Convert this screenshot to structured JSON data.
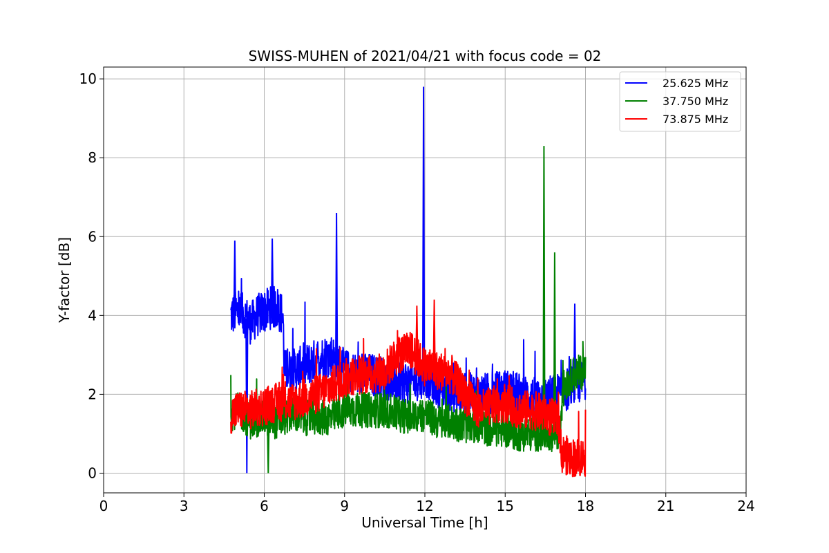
{
  "chart_data": {
    "type": "line",
    "title": "SWISS-MUHEN of 2021/04/21 with focus code = 02",
    "xlabel": "Universal Time [h]",
    "ylabel": "Y-factor [dB]",
    "xlim": [
      0,
      24
    ],
    "ylim": [
      -0.5,
      10.3
    ],
    "xticks": [
      0,
      3,
      6,
      9,
      12,
      15,
      18,
      21,
      24
    ],
    "yticks": [
      0,
      2,
      4,
      6,
      8,
      10
    ],
    "grid": true,
    "legend_position": "top-right",
    "series": [
      {
        "name": "25.625 MHz",
        "color": "#0000ff",
        "x": [
          4.75,
          5.0,
          5.25,
          5.5,
          5.75,
          6.0,
          6.25,
          6.5,
          6.7,
          6.75,
          7.0,
          7.5,
          8.0,
          8.5,
          9.0,
          9.5,
          10.0,
          10.5,
          11.0,
          11.5,
          12.0,
          12.5,
          13.0,
          13.5,
          14.0,
          14.5,
          15.0,
          15.5,
          16.0,
          16.5,
          17.0,
          17.5,
          18.0
        ],
        "y": [
          4.0,
          4.1,
          4.0,
          3.8,
          4.0,
          4.1,
          4.2,
          4.2,
          4.0,
          2.6,
          2.6,
          2.7,
          2.9,
          3.0,
          2.6,
          2.5,
          2.5,
          2.4,
          2.3,
          2.3,
          2.5,
          2.2,
          2.1,
          2.0,
          2.0,
          2.0,
          2.1,
          2.0,
          1.9,
          1.9,
          2.0,
          2.2,
          2.4
        ],
        "peaks": [
          {
            "x": 4.9,
            "y": 5.9
          },
          {
            "x": 5.35,
            "y": 0.0
          },
          {
            "x": 6.3,
            "y": 5.95
          },
          {
            "x": 8.7,
            "y": 6.6
          },
          {
            "x": 11.95,
            "y": 9.8
          },
          {
            "x": 17.6,
            "y": 4.3
          }
        ]
      },
      {
        "name": "37.750 MHz",
        "color": "#008000",
        "x": [
          4.75,
          5.0,
          5.5,
          6.0,
          6.5,
          7.0,
          7.5,
          8.0,
          8.5,
          9.0,
          9.5,
          10.0,
          10.5,
          11.0,
          11.5,
          12.0,
          12.5,
          13.0,
          13.5,
          14.0,
          14.5,
          15.0,
          15.5,
          16.0,
          16.5,
          17.0,
          17.2,
          17.5,
          18.0
        ],
        "y": [
          1.5,
          1.6,
          1.3,
          1.4,
          1.3,
          1.5,
          1.4,
          1.4,
          1.4,
          1.6,
          1.6,
          1.6,
          1.6,
          1.5,
          1.4,
          1.5,
          1.3,
          1.3,
          1.2,
          1.2,
          1.1,
          1.1,
          1.0,
          1.0,
          1.0,
          1.0,
          2.2,
          2.5,
          2.6
        ],
        "peaks": [
          {
            "x": 6.15,
            "y": 0.0
          },
          {
            "x": 16.45,
            "y": 8.3
          },
          {
            "x": 16.85,
            "y": 5.6
          }
        ]
      },
      {
        "name": "73.875 MHz",
        "color": "#ff0000",
        "x": [
          4.75,
          5.0,
          5.5,
          6.0,
          6.5,
          7.0,
          7.5,
          8.0,
          8.5,
          9.0,
          9.5,
          10.0,
          10.5,
          11.0,
          11.5,
          12.0,
          12.5,
          13.0,
          13.5,
          14.0,
          14.5,
          15.0,
          15.5,
          16.0,
          16.5,
          17.0,
          17.1,
          17.5,
          18.0
        ],
        "y": [
          1.5,
          1.6,
          1.6,
          1.7,
          1.8,
          1.8,
          1.9,
          2.0,
          2.2,
          2.4,
          2.5,
          2.5,
          2.6,
          3.0,
          3.1,
          2.7,
          2.6,
          2.5,
          2.0,
          1.6,
          1.7,
          1.8,
          1.6,
          1.6,
          1.5,
          1.3,
          0.5,
          0.4,
          0.4
        ],
        "peaks": [
          {
            "x": 12.35,
            "y": 4.4
          },
          {
            "x": 11.7,
            "y": 4.25
          },
          {
            "x": 17.4,
            "y": 0.0
          }
        ]
      }
    ]
  }
}
